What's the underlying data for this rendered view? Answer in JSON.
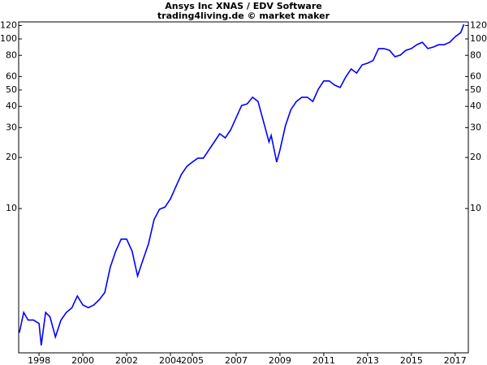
{
  "chart_data": {
    "type": "line",
    "title": "Ansys Inc XNAS / EDV Software",
    "subtitle": "trading4living.de © market maker",
    "log_scale": true,
    "color": "#0000ff",
    "x": [
      1997.1,
      1997.3,
      1997.5,
      1997.75,
      1998.0,
      1998.1,
      1998.3,
      1998.5,
      1998.75,
      1999.0,
      1999.25,
      1999.5,
      1999.75,
      2000.0,
      2000.25,
      2000.5,
      2000.75,
      2001.0,
      2001.25,
      2001.5,
      2001.75,
      2002.0,
      2002.25,
      2002.5,
      2002.75,
      2003.0,
      2003.25,
      2003.5,
      2003.75,
      2004.0,
      2004.25,
      2004.5,
      2004.75,
      2005.0,
      2005.25,
      2005.5,
      2005.75,
      2006.0,
      2006.25,
      2006.5,
      2006.75,
      2007.0,
      2007.25,
      2007.5,
      2007.75,
      2008.0,
      2008.25,
      2008.5,
      2008.6,
      2008.85,
      2009.0,
      2009.25,
      2009.5,
      2009.75,
      2010.0,
      2010.25,
      2010.5,
      2010.75,
      2011.0,
      2011.25,
      2011.5,
      2011.75,
      2012.0,
      2012.25,
      2012.5,
      2012.75,
      2013.0,
      2013.25,
      2013.5,
      2013.75,
      2014.0,
      2014.25,
      2014.5,
      2014.75,
      2015.0,
      2015.25,
      2015.5,
      2015.75,
      2016.0,
      2016.25,
      2016.5,
      2016.75,
      2017.0,
      2017.25,
      2017.4
    ],
    "values": [
      1.85,
      2.44,
      2.2,
      2.2,
      2.1,
      1.56,
      2.44,
      2.3,
      1.75,
      2.2,
      2.44,
      2.6,
      3.05,
      2.7,
      2.6,
      2.7,
      2.9,
      3.2,
      4.5,
      5.6,
      6.6,
      6.6,
      5.6,
      4.0,
      5.0,
      6.2,
      8.6,
      9.9,
      10.2,
      11.4,
      13.5,
      15.9,
      17.7,
      18.8,
      19.8,
      19.8,
      22.1,
      24.7,
      27.6,
      26.1,
      29.1,
      34.4,
      40.5,
      41.4,
      45.3,
      42.8,
      32.5,
      24.7,
      27.0,
      18.8,
      22.1,
      30.8,
      38.3,
      42.8,
      45.3,
      45.3,
      42.8,
      50.6,
      56.5,
      56.5,
      53.4,
      51.7,
      59.6,
      66.5,
      62.9,
      70.3,
      71.9,
      74.5,
      87.7,
      87.7,
      85.7,
      78.6,
      80.3,
      85.7,
      87.7,
      92.5,
      95.6,
      87.7,
      89.6,
      92.5,
      92.5,
      95.6,
      103,
      109,
      122
    ],
    "xlim": [
      1997.07,
      2017.6
    ],
    "xticks": [
      1998,
      2000,
      2002,
      2004,
      2005,
      2007,
      2009,
      2011,
      2013,
      2015,
      2017
    ],
    "ylim": [
      1.41,
      126
    ],
    "yticks": [
      10,
      20,
      30,
      40,
      50,
      60,
      80,
      100,
      120
    ]
  }
}
